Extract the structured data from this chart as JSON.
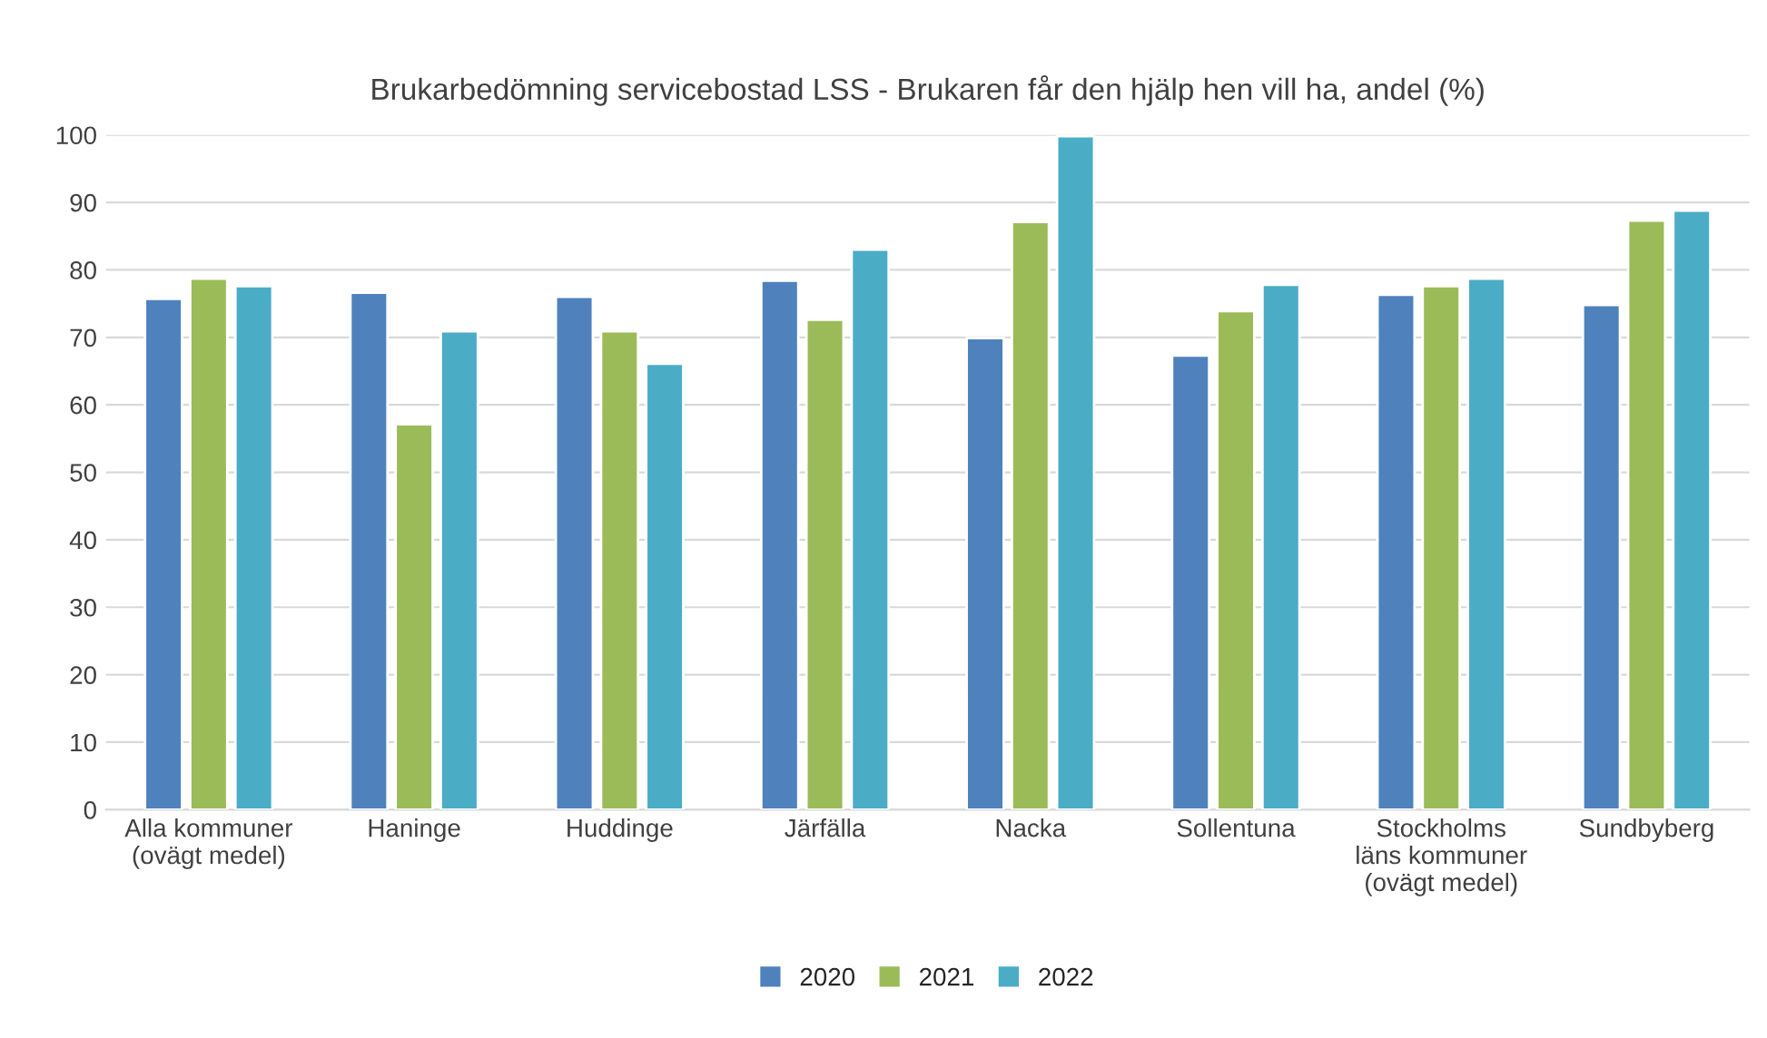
{
  "chart_data": {
    "type": "bar",
    "title": "Brukarbedömning servicebostad LSS - Brukaren får den hjälp hen vill ha, andel (%)",
    "categories": [
      "Alla kommuner\n(ovägt medel)",
      "Haninge",
      "Huddinge",
      "Järfälla",
      "Nacka",
      "Sollentuna",
      "Stockholms\nläns kommuner\n(ovägt medel)",
      "Sundbyberg"
    ],
    "series": [
      {
        "name": "2020",
        "color": "#4f81bd",
        "values": [
          75.7,
          76.6,
          76.0,
          78.4,
          69.9,
          67.3,
          76.3,
          74.8
        ]
      },
      {
        "name": "2021",
        "color": "#9bbb59",
        "values": [
          78.7,
          57.1,
          70.9,
          72.6,
          87.1,
          73.9,
          77.6,
          87.3
        ]
      },
      {
        "name": "2022",
        "color": "#4bacc6",
        "values": [
          77.6,
          70.9,
          66.1,
          83.0,
          99.8,
          77.8,
          78.7,
          88.8
        ]
      }
    ],
    "ylim": [
      0,
      100
    ],
    "yticks": [
      0,
      10,
      20,
      30,
      40,
      50,
      60,
      70,
      80,
      90,
      100
    ],
    "grid": "y",
    "legend": "bottom"
  }
}
